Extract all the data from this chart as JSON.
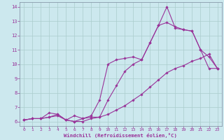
{
  "xlabel": "Windchill (Refroidissement éolien,°C)",
  "background_color": "#cce8ee",
  "grid_color": "#aacccc",
  "line_color": "#993399",
  "xlim": [
    -0.5,
    23.5
  ],
  "ylim": [
    5.7,
    14.3
  ],
  "xticks": [
    0,
    1,
    2,
    3,
    4,
    5,
    6,
    7,
    8,
    9,
    10,
    11,
    12,
    13,
    14,
    15,
    16,
    17,
    18,
    19,
    20,
    21,
    22,
    23
  ],
  "yticks": [
    6,
    7,
    8,
    9,
    10,
    11,
    12,
    13,
    14
  ],
  "line1_x": [
    0,
    1,
    2,
    3,
    4,
    5,
    6,
    7,
    8,
    9,
    10,
    11,
    12,
    13,
    14,
    15,
    16,
    17,
    18,
    19,
    20,
    21,
    22,
    23
  ],
  "line1_y": [
    6.1,
    6.2,
    6.2,
    6.6,
    6.5,
    6.1,
    6.4,
    6.2,
    6.4,
    7.5,
    10.0,
    10.3,
    10.4,
    10.5,
    10.3,
    11.5,
    12.7,
    14.0,
    12.5,
    12.4,
    12.3,
    11.0,
    10.5,
    9.7
  ],
  "line2_x": [
    0,
    1,
    2,
    3,
    4,
    5,
    6,
    7,
    8,
    9,
    10,
    11,
    12,
    13,
    14,
    15,
    16,
    17,
    18,
    19,
    20,
    21,
    22,
    23
  ],
  "line2_y": [
    6.1,
    6.2,
    6.2,
    6.3,
    6.5,
    6.1,
    6.0,
    6.2,
    6.3,
    6.3,
    7.5,
    8.5,
    9.5,
    10.0,
    10.3,
    11.5,
    12.7,
    12.9,
    12.6,
    12.4,
    12.3,
    11.0,
    9.7,
    9.7
  ],
  "line3_x": [
    0,
    1,
    2,
    3,
    4,
    5,
    6,
    7,
    8,
    9,
    10,
    11,
    12,
    13,
    14,
    15,
    16,
    17,
    18,
    19,
    20,
    21,
    22,
    23
  ],
  "line3_y": [
    6.1,
    6.2,
    6.2,
    6.3,
    6.4,
    6.1,
    6.0,
    6.0,
    6.2,
    6.3,
    6.5,
    6.8,
    7.1,
    7.5,
    7.9,
    8.4,
    8.9,
    9.4,
    9.7,
    9.9,
    10.2,
    10.4,
    10.7,
    9.7
  ]
}
